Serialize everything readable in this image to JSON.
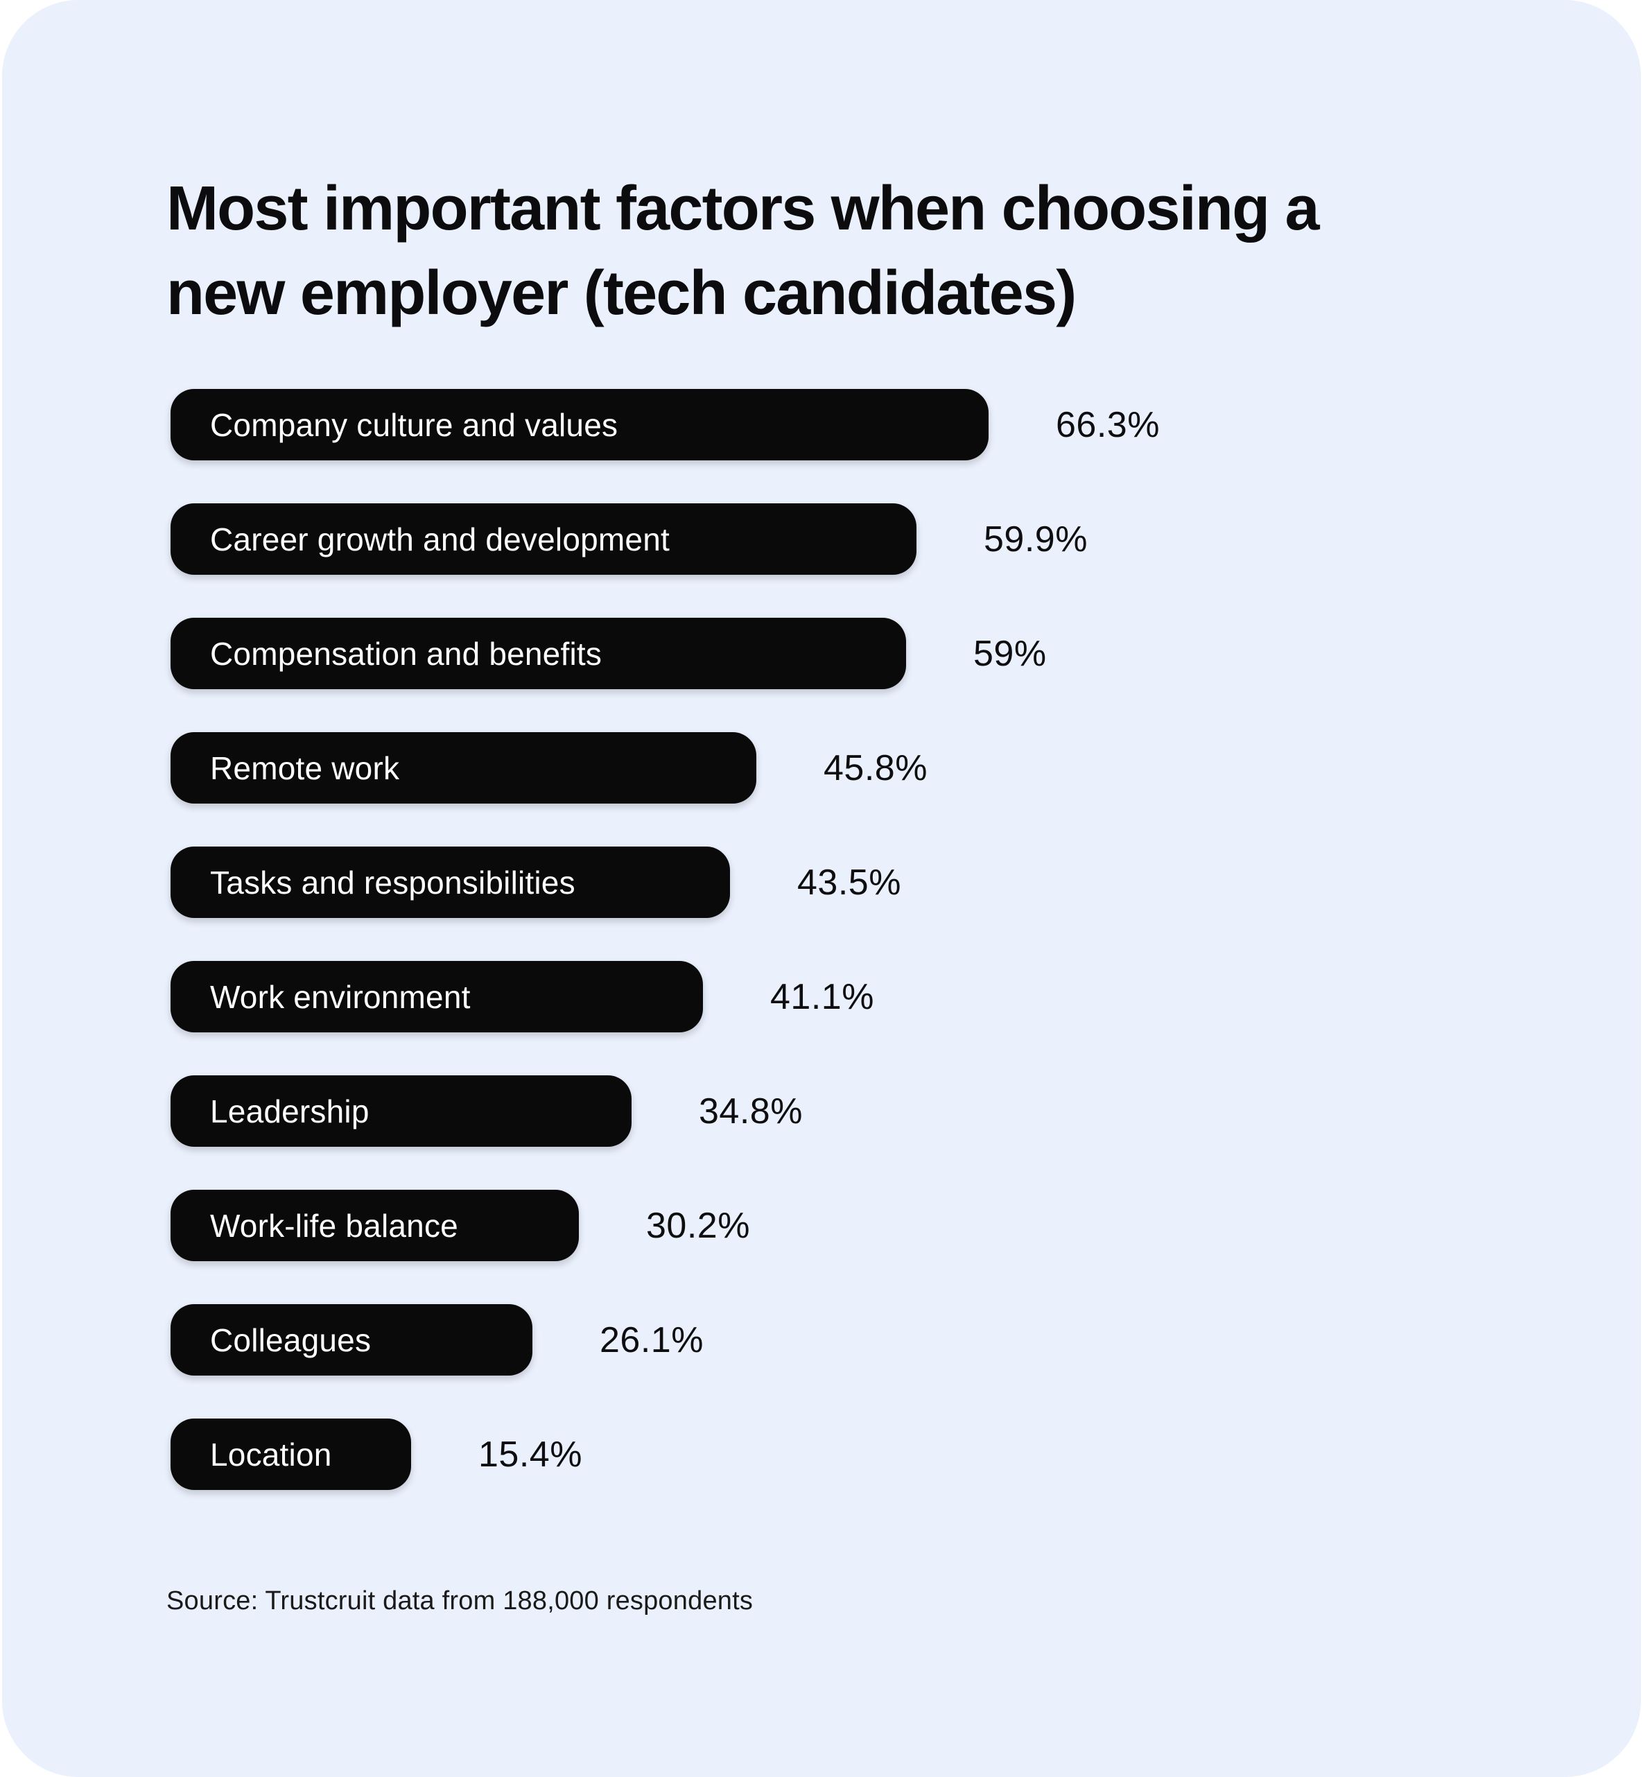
{
  "page": {
    "background_color": "#FFFFFF",
    "card_background_color": "#EAF0FC",
    "bar_color": "#0A0A0A",
    "bar_text_color": "#FFFFFF",
    "text_color": "#0C0C0E"
  },
  "title_lines": [
    "Most important factors when choosing a",
    "new employer (tech candidates)"
  ],
  "source": "Source: Trustcruit data from 188,000 respondents",
  "chart_data": {
    "type": "bar",
    "orientation": "horizontal",
    "title": "Most important factors when choosing a new employer (tech candidates)",
    "categories": [
      "Company culture and values",
      "Career growth and development",
      "Compensation and benefits",
      "Remote work",
      "Tasks and responsibilities",
      "Work environment",
      "Leadership",
      "Work-life balance",
      "Colleagues",
      "Location"
    ],
    "values": [
      66.3,
      59.9,
      59,
      45.8,
      43.5,
      41.1,
      34.8,
      30.2,
      26.1,
      15.4
    ],
    "value_labels": [
      "66.3%",
      "59.9%",
      "59%",
      "45.8%",
      "43.5%",
      "41.1%",
      "34.8%",
      "30.2%",
      "26.1%",
      "15.4%"
    ],
    "xlim": [
      0,
      70
    ],
    "grid": false,
    "legend": false,
    "source_note": "Source: Trustcruit data from 188,000 respondents"
  }
}
